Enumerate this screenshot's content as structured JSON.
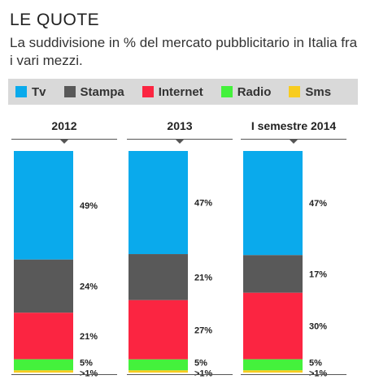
{
  "header": {
    "title": "LE QUOTE",
    "subtitle": "La suddivisione in % del mercato pubblicitario in Italia fra i vari mezzi."
  },
  "legend": [
    {
      "label": "Tv",
      "color": "#0aaaec"
    },
    {
      "label": "Stampa",
      "color": "#595959"
    },
    {
      "label": "Internet",
      "color": "#fb2541"
    },
    {
      "label": "Radio",
      "color": "#44f13c"
    },
    {
      "label": "Sms",
      "color": "#f8cc1f"
    }
  ],
  "chart_data": {
    "type": "bar",
    "stacked": true,
    "categories": [
      "2012",
      "2013",
      "I semestre 2014"
    ],
    "series": [
      {
        "name": "Tv",
        "values": [
          49,
          47,
          47
        ],
        "labels": [
          "49%",
          "47%",
          "47%"
        ]
      },
      {
        "name": "Stampa",
        "values": [
          24,
          21,
          17
        ],
        "labels": [
          "24%",
          "21%",
          "17%"
        ]
      },
      {
        "name": "Internet",
        "values": [
          21,
          27,
          30
        ],
        "labels": [
          "21%",
          "27%",
          "30%"
        ]
      },
      {
        "name": "Radio",
        "values": [
          5,
          5,
          5
        ],
        "labels": [
          "5%",
          "5%",
          "5%"
        ]
      },
      {
        "name": "Sms",
        "values": [
          1,
          1,
          1
        ],
        "labels": [
          ">1%",
          ">1%",
          ">1%"
        ]
      }
    ],
    "ylim": [
      0,
      100
    ],
    "grid": false,
    "legend_position": "top"
  }
}
